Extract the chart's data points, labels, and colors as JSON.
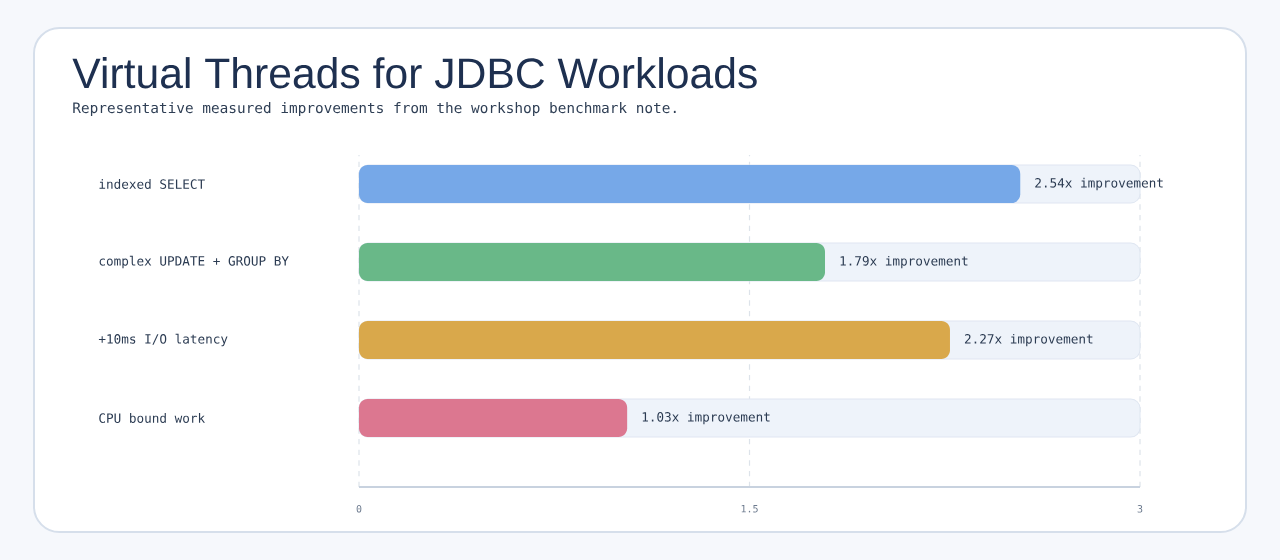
{
  "chart_data": {
    "type": "bar",
    "orientation": "horizontal",
    "title": "Virtual Threads for JDBC Workloads",
    "subtitle": "Representative measured improvements from the workshop benchmark note.",
    "categories": [
      "indexed SELECT",
      "complex UPDATE + GROUP BY",
      "+10ms I/O latency",
      "CPU bound work"
    ],
    "values": [
      2.54,
      1.79,
      2.27,
      1.03
    ],
    "colors": [
      "#76a8e8",
      "#69b888",
      "#d9a84b",
      "#dc7790"
    ],
    "value_labels": [
      "2.54x improvement",
      "1.79x improvement",
      "2.27x improvement",
      "1.03x improvement"
    ],
    "xlim": [
      0,
      3
    ],
    "xticks": [
      0,
      1.5,
      3
    ],
    "grid": "x"
  }
}
